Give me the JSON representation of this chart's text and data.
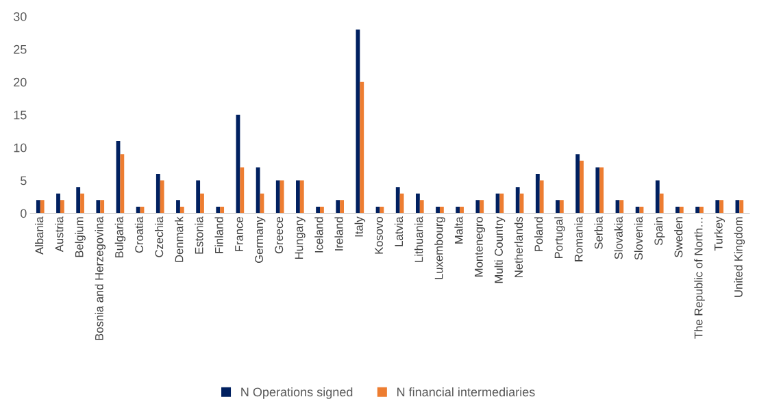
{
  "chart_data": {
    "type": "bar",
    "categories": [
      "Albania",
      "Austria",
      "Belgium",
      "Bosnia and Herzegovina",
      "Bulgaria",
      "Croatia",
      "Czechia",
      "Denmark",
      "Estonia",
      "Finland",
      "France",
      "Germany",
      "Greece",
      "Hungary",
      "Iceland",
      "Ireland",
      "Italy",
      "Kosovo",
      "Latvia",
      "Lithuania",
      "Luxembourg",
      "Malta",
      "Montenegro",
      "Multi Country",
      "Netherlands",
      "Poland",
      "Portugal",
      "Romania",
      "Serbia",
      "Slovakia",
      "Slovenia",
      "Spain",
      "Sweden",
      "The Republic of North…",
      "Turkey",
      "United Kingdom"
    ],
    "series": [
      {
        "name": "N Operations signed",
        "color": "#002060",
        "values": [
          2,
          3,
          4,
          2,
          11,
          1,
          6,
          2,
          5,
          1,
          15,
          7,
          5,
          5,
          1,
          2,
          28,
          1,
          4,
          3,
          1,
          1,
          2,
          3,
          4,
          6,
          2,
          9,
          7,
          2,
          1,
          5,
          1,
          1,
          2,
          2
        ]
      },
      {
        "name": "N financial intermediaries",
        "color": "#ed7d31",
        "values": [
          2,
          2,
          3,
          2,
          9,
          1,
          5,
          1,
          3,
          1,
          7,
          3,
          5,
          5,
          1,
          2,
          20,
          1,
          3,
          2,
          1,
          1,
          2,
          3,
          3,
          5,
          2,
          8,
          7,
          2,
          1,
          3,
          1,
          1,
          2,
          2
        ]
      }
    ],
    "ylim": [
      0,
      30
    ],
    "yticks": [
      0,
      5,
      10,
      15,
      20,
      25,
      30
    ],
    "grid": false,
    "legend": "bottom"
  }
}
